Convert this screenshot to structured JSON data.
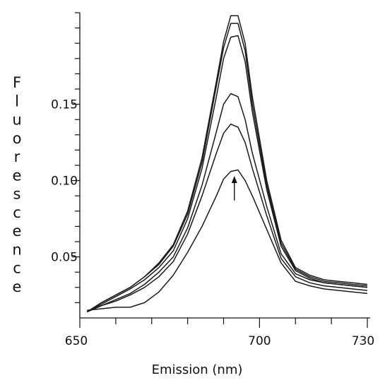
{
  "chart_data": {
    "type": "line",
    "title": "",
    "xlabel": "Emission (nm)",
    "ylabel": "Fluorescence",
    "xlim": [
      650,
      730
    ],
    "ylim": [
      0.01,
      0.21
    ],
    "x_major_ticks": [
      650,
      700,
      730
    ],
    "x_tick_labels": [
      "650",
      "700",
      "730"
    ],
    "x_minor_ticks": [
      650,
      660,
      670,
      680,
      690,
      700,
      710,
      720,
      730
    ],
    "y_major_ticks": [
      0.05,
      0.1,
      0.15
    ],
    "y_tick_labels": [
      "0.05",
      "0.10",
      "0.15"
    ],
    "y_minor_step": 0.01,
    "grid": false,
    "legend": "none",
    "line_color": "#1a1a1a",
    "annotations": [
      {
        "type": "arrow",
        "x": 693,
        "y_from": 0.087,
        "y_to": 0.103,
        "direction": "up"
      }
    ],
    "x": [
      652,
      656,
      660,
      664,
      668,
      672,
      676,
      680,
      684,
      688,
      690,
      692,
      694,
      696,
      698,
      702,
      706,
      710,
      714,
      718,
      722,
      726,
      730
    ],
    "series": [
      {
        "values": [
          0.014,
          0.02,
          0.025,
          0.03,
          0.037,
          0.046,
          0.058,
          0.08,
          0.115,
          0.165,
          0.191,
          0.208,
          0.208,
          0.19,
          0.155,
          0.1,
          0.061,
          0.043,
          0.038,
          0.035,
          0.034,
          0.033,
          0.032
        ]
      },
      {
        "values": [
          0.014,
          0.02,
          0.025,
          0.03,
          0.037,
          0.045,
          0.057,
          0.078,
          0.112,
          0.162,
          0.187,
          0.203,
          0.203,
          0.185,
          0.15,
          0.097,
          0.059,
          0.042,
          0.037,
          0.034,
          0.033,
          0.032,
          0.031
        ]
      },
      {
        "values": [
          0.014,
          0.019,
          0.024,
          0.029,
          0.035,
          0.043,
          0.054,
          0.075,
          0.108,
          0.155,
          0.18,
          0.194,
          0.195,
          0.178,
          0.145,
          0.094,
          0.057,
          0.041,
          0.036,
          0.033,
          0.032,
          0.031,
          0.03
        ]
      },
      {
        "values": [
          0.014,
          0.018,
          0.022,
          0.026,
          0.032,
          0.04,
          0.05,
          0.069,
          0.097,
          0.132,
          0.15,
          0.157,
          0.155,
          0.14,
          0.118,
          0.083,
          0.052,
          0.039,
          0.035,
          0.033,
          0.032,
          0.031,
          0.03
        ]
      },
      {
        "values": [
          0.014,
          0.018,
          0.021,
          0.025,
          0.03,
          0.037,
          0.047,
          0.065,
          0.09,
          0.118,
          0.131,
          0.137,
          0.135,
          0.125,
          0.108,
          0.077,
          0.049,
          0.037,
          0.033,
          0.031,
          0.03,
          0.029,
          0.028
        ]
      },
      {
        "values": [
          0.015,
          0.016,
          0.017,
          0.017,
          0.02,
          0.027,
          0.038,
          0.053,
          0.07,
          0.09,
          0.101,
          0.106,
          0.107,
          0.1,
          0.09,
          0.068,
          0.046,
          0.034,
          0.031,
          0.029,
          0.028,
          0.027,
          0.026
        ]
      }
    ]
  }
}
